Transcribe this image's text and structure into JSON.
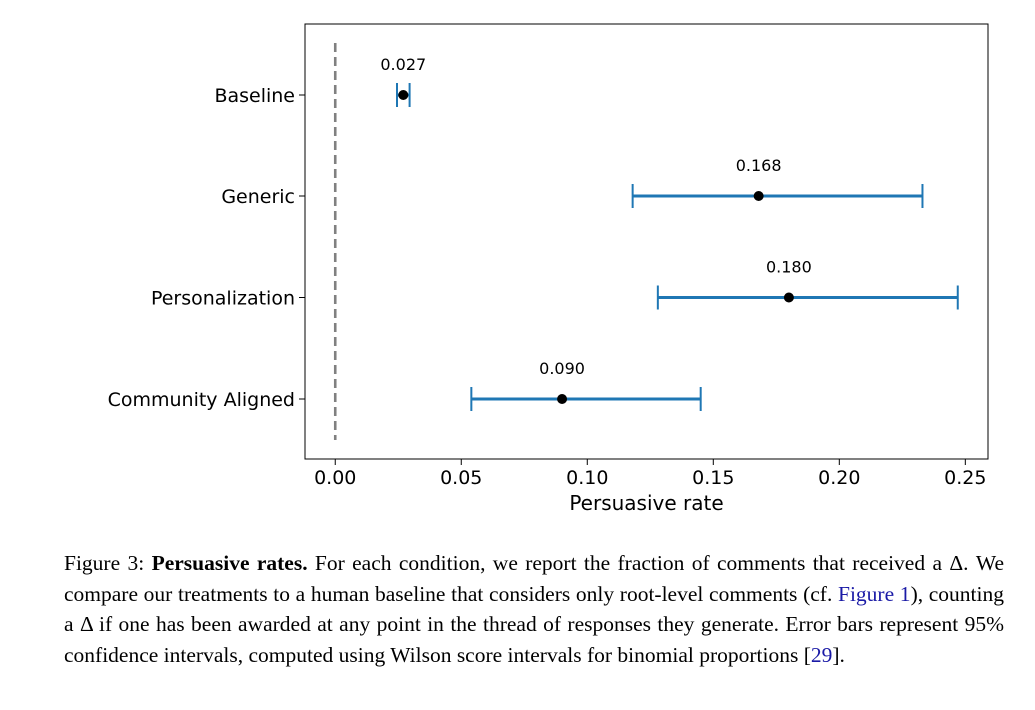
{
  "chart_data": {
    "type": "errorbar",
    "categories": [
      "Baseline",
      "Generic",
      "Personalization",
      "Community Aligned"
    ],
    "values": [
      0.027,
      0.168,
      0.18,
      0.09
    ],
    "ci_low": [
      0.0245,
      0.118,
      0.128,
      0.054
    ],
    "ci_high": [
      0.0295,
      0.233,
      0.247,
      0.145
    ],
    "value_labels": [
      "0.027",
      "0.168",
      "0.180",
      "0.090"
    ],
    "xlabel": "Persuasive rate",
    "xlim": [
      -0.012,
      0.259
    ],
    "xticks": [
      0.0,
      0.05,
      0.1,
      0.15,
      0.2,
      0.25
    ],
    "xtick_labels": [
      "0.00",
      "0.05",
      "0.10",
      "0.15",
      "0.20",
      "0.25"
    ],
    "reference_line": 0.0,
    "colors": {
      "errorbar": "#1f77b4",
      "point": "#000000",
      "reference": "#808080"
    },
    "grid": false
  },
  "caption": {
    "figure_label": "Figure 3: ",
    "title": "Persuasive rates.",
    "text_1": " For each condition, we report the fraction of comments that received a Δ.  We compare our treatments to a human baseline that considers only root-level comments (cf. ",
    "ref_1": "Figure 1",
    "text_2": "), counting a Δ if one has been awarded at any point in the thread of responses they generate. Error bars represent 95% confidence intervals, computed using Wilson score intervals for binomial proportions [",
    "ref_2": "29",
    "text_3": "]."
  }
}
